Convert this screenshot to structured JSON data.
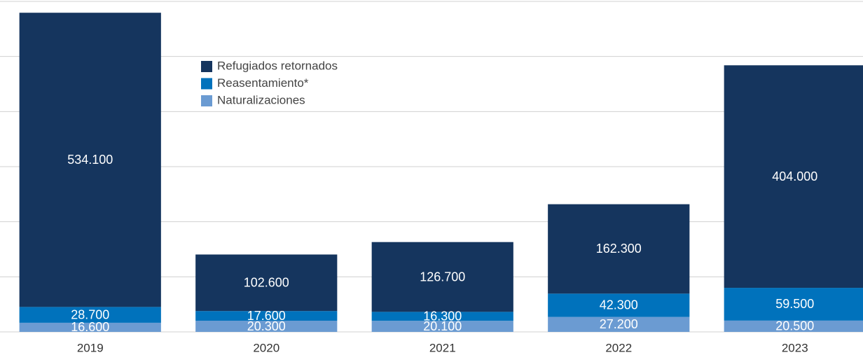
{
  "chart_data": {
    "type": "bar",
    "stacked": true,
    "categories": [
      "2019",
      "2020",
      "2021",
      "2022",
      "2023"
    ],
    "series": [
      {
        "name": "Naturalizaciones",
        "color": "#6b9bd2",
        "values": [
          16600,
          20300,
          20100,
          27200,
          20500
        ],
        "value_labels": [
          "16.600",
          "20.300",
          "20.100",
          "27.200",
          "20.500"
        ]
      },
      {
        "name": "Reasentamiento*",
        "color": "#0072bc",
        "values": [
          28700,
          17600,
          16300,
          42300,
          59500
        ],
        "value_labels": [
          "28.700",
          "17.600",
          "16.300",
          "42.300",
          "59.500"
        ]
      },
      {
        "name": "Refugiados retornados",
        "color": "#15355e",
        "values": [
          534100,
          102600,
          126700,
          162300,
          404000
        ],
        "value_labels": [
          "534.100",
          "102.600",
          "126.700",
          "162.300",
          "404.000"
        ]
      }
    ],
    "ylim": [
      0,
      600000
    ],
    "yticks": [
      0,
      100000,
      200000,
      300000,
      400000,
      500000,
      600000
    ],
    "grid": true
  }
}
